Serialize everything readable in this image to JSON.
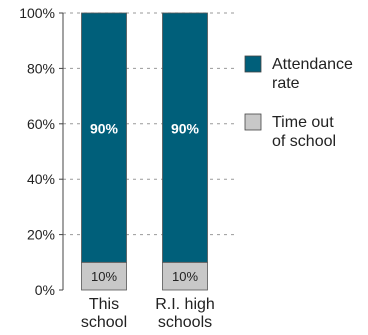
{
  "chart_data": {
    "type": "bar",
    "stacked": true,
    "categories": [
      [
        "This",
        "school"
      ],
      [
        "R.I. high",
        "schools"
      ]
    ],
    "series": [
      {
        "name": "Time out of school",
        "legend_lines": [
          "Time out",
          "of school"
        ],
        "values": [
          10,
          10
        ],
        "labels": [
          "10%",
          "10%"
        ],
        "color": "#c8c8c8"
      },
      {
        "name": "Attendance rate",
        "legend_lines": [
          "Attendance",
          "rate"
        ],
        "values": [
          90,
          90
        ],
        "labels": [
          "90%",
          "90%"
        ],
        "color": "#005f7a"
      }
    ],
    "legend_order": [
      1,
      0
    ],
    "ylim": [
      0,
      100
    ],
    "yticks": [
      0,
      20,
      40,
      60,
      80,
      100
    ],
    "ytick_labels": [
      "0%",
      "20%",
      "40%",
      "60%",
      "80%",
      "100%"
    ],
    "grid": true,
    "legend_position": "right",
    "title": "",
    "xlabel": "",
    "ylabel": ""
  }
}
